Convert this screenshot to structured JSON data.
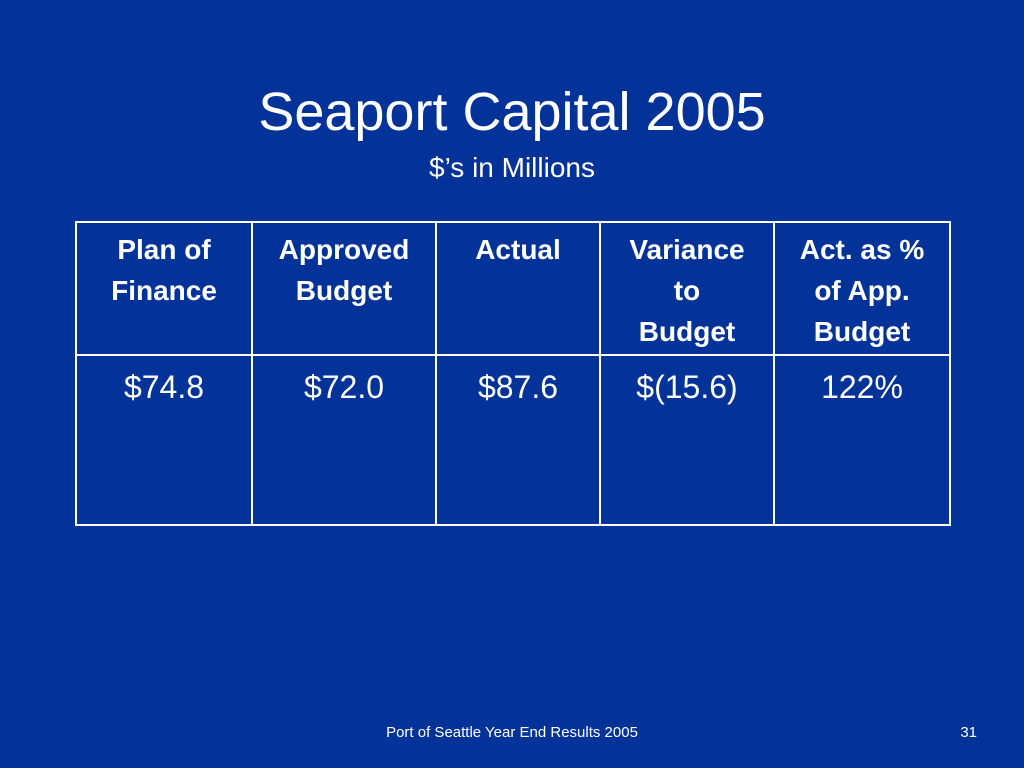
{
  "slide": {
    "title": "Seaport Capital 2005",
    "subtitle": "$’s in Millions"
  },
  "table": {
    "headers": [
      "Plan of\nFinance",
      "Approved\nBudget",
      "Actual",
      "Variance\nto\nBudget",
      "Act. as %\nof App.\nBudget"
    ],
    "rows": [
      [
        "$74.8",
        "$72.0",
        "$87.6",
        "$(15.6)",
        "122%"
      ]
    ]
  },
  "footer": {
    "text": "Port of Seattle Year End Results 2005",
    "page_number": "31"
  },
  "colors": {
    "background": "#033399",
    "text": "#ffffff",
    "border": "#ffffff"
  }
}
